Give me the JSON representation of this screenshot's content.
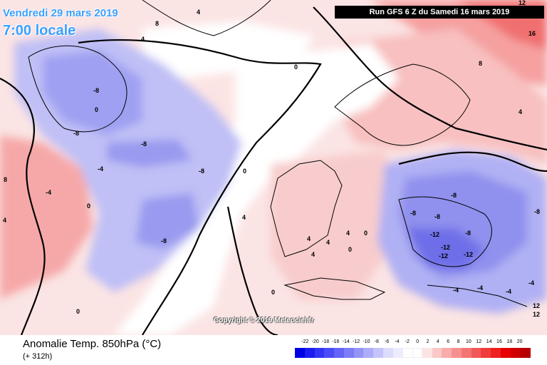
{
  "valid": {
    "date": "Vendredi 29 mars 2019",
    "time": "7:00 locale"
  },
  "run_info": "Run GFS 6 Z du Samedi 16 mars 2019",
  "copyright": "Copyright © 2019 Meteociel.fr",
  "parameter_title": "Anomalie Temp. 850hPa (°C)",
  "lead_time": "(+ 312h)",
  "legend": {
    "ticks": [
      "-22",
      "-20",
      "-18",
      "-16",
      "-14",
      "-12",
      "-10",
      "-8",
      "-6",
      "-4",
      "-2",
      "0",
      "2",
      "4",
      "6",
      "8",
      "10",
      "12",
      "14",
      "16",
      "18",
      "20"
    ],
    "colors": [
      "#0000e6",
      "#1c1cf0",
      "#3434f4",
      "#4c4cf6",
      "#6464f6",
      "#7c7cf6",
      "#9494f6",
      "#acacf8",
      "#c4c4fa",
      "#dcdcfc",
      "#ececfe",
      "#ffffff",
      "#ffffff",
      "#fce4e4",
      "#fac8c8",
      "#f8acac",
      "#f69090",
      "#f47474",
      "#f25858",
      "#f03c3c",
      "#ee2020",
      "#e60000",
      "#d00000",
      "#b80000"
    ]
  },
  "contour_labels": [
    "12",
    "16",
    "8",
    "4",
    "4",
    "0",
    "4",
    "8",
    "-8",
    "0",
    "-8",
    "-4",
    "-8",
    "-8",
    "0",
    "-8",
    "-4",
    "0",
    "0",
    "4",
    "4",
    "8",
    "4",
    "-8",
    "-8",
    "-8",
    "-8",
    "-12",
    "-8",
    "-12",
    "-12",
    "-12",
    "-4",
    "-4",
    "-4",
    "-4",
    "4",
    "0",
    "4",
    "4",
    "0",
    "12",
    "12",
    "0"
  ],
  "colors": {
    "warm_anomaly": "#f8b0b0",
    "cold_anomaly": "#9a9af0",
    "neutral": "#ffffff",
    "title_blue": "#3aa0ff"
  }
}
